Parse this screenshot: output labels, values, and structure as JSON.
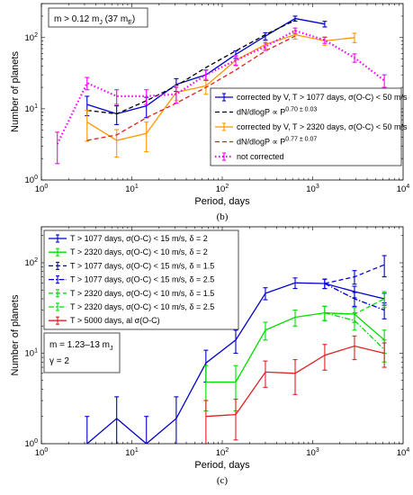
{
  "chart_data": [
    {
      "type": "line",
      "panel_label": "(b)",
      "xlabel": "Period, days",
      "ylabel": "Number of planets",
      "xscale": "log",
      "yscale": "log",
      "xlim": [
        1,
        10000
      ],
      "ylim": [
        1,
        300
      ],
      "xticks": [
        {
          "value": 1,
          "base": "10",
          "exp": "0"
        },
        {
          "value": 10,
          "base": "10",
          "exp": "1"
        },
        {
          "value": 100,
          "base": "10",
          "exp": "2"
        },
        {
          "value": 1000,
          "base": "10",
          "exp": "3"
        },
        {
          "value": 10000,
          "base": "10",
          "exp": "4"
        }
      ],
      "yticks": [
        {
          "value": 1,
          "base": "10",
          "exp": "0"
        },
        {
          "value": 10,
          "base": "10",
          "exp": "1"
        },
        {
          "value": 100,
          "base": "10",
          "exp": "2"
        }
      ],
      "annotation": "m > 0.12 m_J (37 m_E)",
      "legend_position": "lower-right",
      "series": [
        {
          "name": "corrected by V, T > 1077 days, σ(O-C) < 50 m/s",
          "color": "#0000cc",
          "style": "solid",
          "x": [
            3.2,
            6.8,
            14.5,
            31,
            66,
            141,
            300,
            640,
            1360
          ],
          "y": [
            11.5,
            8.5,
            11,
            22,
            30,
            58,
            105,
            185,
            155
          ],
          "err": [
            3.5,
            2.5,
            3.5,
            4.5,
            5,
            7,
            12,
            15,
            14
          ]
        },
        {
          "name": "dN/dlogP ∝ P^{0.70 ± 0.03}",
          "color": "#000000",
          "style": "dashed",
          "x": [
            3.2,
            6.8,
            14.5,
            31,
            66,
            141,
            300,
            640
          ],
          "y": [
            9.5,
            8.5,
            13,
            21,
            38,
            65,
            110,
            175
          ]
        },
        {
          "name": "corrected by V, T > 2320 days, σ(O-C) < 50 m/s",
          "color": "#ff9900",
          "style": "solid",
          "x": [
            3.2,
            6.8,
            14.5,
            31,
            66,
            141,
            300,
            640,
            1360,
            2900
          ],
          "y": [
            6.5,
            3.6,
            4.5,
            17,
            21,
            48,
            80,
            110,
            90,
            100
          ],
          "err": [
            3,
            1.5,
            2,
            4,
            5,
            8,
            10,
            15,
            12,
            15
          ]
        },
        {
          "name": "dN/dlogP ∝ P^{0.77 ± 0.07}",
          "color": "#e02020",
          "style": "dashed",
          "x": [
            3.2,
            6.8,
            14.5,
            31,
            66,
            141,
            300,
            640
          ],
          "y": [
            3.6,
            4.3,
            7.5,
            12,
            20,
            35,
            65,
            105
          ]
        },
        {
          "name": "not corrected",
          "color": "#ff00ff",
          "style": "dotted",
          "x": [
            1.5,
            3.2,
            6.8,
            14.5,
            31,
            66,
            141,
            300,
            640,
            1360,
            2900,
            6200
          ],
          "y": [
            3.2,
            23,
            15,
            15,
            16,
            30,
            48,
            75,
            125,
            92,
            52,
            25
          ],
          "err": [
            1.5,
            4.5,
            3.5,
            3.5,
            4,
            5,
            7,
            9,
            11,
            9,
            7,
            5
          ]
        }
      ]
    },
    {
      "type": "line",
      "panel_label": "(c)",
      "xlabel": "Period, days",
      "ylabel": "Number of planets",
      "xscale": "log",
      "yscale": "log",
      "xlim": [
        1,
        10000
      ],
      "ylim": [
        1,
        250
      ],
      "xticks": [
        {
          "value": 1,
          "base": "10",
          "exp": "0"
        },
        {
          "value": 10,
          "base": "10",
          "exp": "1"
        },
        {
          "value": 100,
          "base": "10",
          "exp": "2"
        },
        {
          "value": 1000,
          "base": "10",
          "exp": "3"
        },
        {
          "value": 10000,
          "base": "10",
          "exp": "4"
        }
      ],
      "yticks": [
        {
          "value": 1,
          "base": "10",
          "exp": "0"
        },
        {
          "value": 10,
          "base": "10",
          "exp": "1"
        },
        {
          "value": 100,
          "base": "10",
          "exp": "2"
        }
      ],
      "annotation_lines": [
        "m = 1.23–13 m_J",
        "γ = 2"
      ],
      "legend_position": "upper-left",
      "series": [
        {
          "name": "T > 1077 days, σ(O-C) < 15 m/s, δ = 2",
          "color": "#0000cc",
          "style": "solid",
          "x": [
            3.2,
            6.8,
            14.5,
            31,
            66,
            141,
            300,
            640,
            1360,
            2900,
            6200
          ],
          "y": [
            1.001,
            1.9,
            1.001,
            1.9,
            7.8,
            14,
            46,
            60,
            59,
            48,
            40
          ],
          "err": [
            1,
            1.4,
            1,
            1.4,
            3,
            4,
            7,
            8,
            7,
            7,
            6
          ]
        },
        {
          "name": "T > 2320 days, σ(O-C) < 10 m/s, δ = 2",
          "color": "#00dd00",
          "style": "solid",
          "x": [
            66,
            141,
            300,
            640,
            1360,
            2900,
            6200
          ],
          "y": [
            4.8,
            4.8,
            18,
            25,
            28,
            27,
            14
          ],
          "err": [
            2.5,
            2.5,
            4,
            5,
            5,
            5,
            4
          ]
        },
        {
          "name": "T > 1077 days, σ(O-C) < 15 m/s, δ = 1.5",
          "color": "#0000cc",
          "style": "dashed",
          "x": [
            1360,
            2900,
            6200
          ],
          "y": [
            59,
            70,
            95
          ],
          "err": [
            7,
            12,
            25
          ]
        },
        {
          "name": "T > 1077 days, σ(O-C) < 15 m/s, δ = 2.5",
          "color": "#0000cc",
          "style": "dashdot",
          "x": [
            1360,
            2900,
            6200
          ],
          "y": [
            59,
            40,
            30
          ],
          "err": [
            7,
            7,
            6
          ]
        },
        {
          "name": "T > 2320 days, σ(O-C) < 10 m/s, δ = 1.5",
          "color": "#00dd00",
          "style": "dashed",
          "x": [
            1360,
            2900,
            6200
          ],
          "y": [
            28,
            27,
            40
          ],
          "err": [
            5,
            5,
            8
          ]
        },
        {
          "name": "T > 2320 days, σ(O-C) < 10 m/s, δ = 2.5",
          "color": "#00dd00",
          "style": "dashdot",
          "x": [
            1360,
            2900,
            6200
          ],
          "y": [
            28,
            23,
            11
          ],
          "err": [
            5,
            5,
            3
          ]
        },
        {
          "name": "T > 5000 days, al σ(O-C)",
          "color": "#e02020",
          "style": "solid",
          "x": [
            66,
            141,
            300,
            640,
            1360,
            2900,
            6200
          ],
          "y": [
            2,
            2.1,
            6.2,
            6,
            9.5,
            12,
            10
          ],
          "err": [
            1,
            1,
            2,
            2.5,
            3,
            3.5,
            3
          ]
        }
      ]
    }
  ]
}
